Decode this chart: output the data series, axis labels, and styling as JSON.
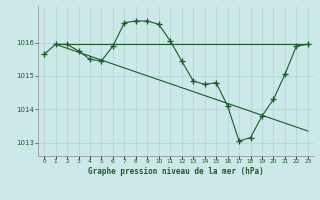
{
  "title": "Graphe pression niveau de la mer (hPa)",
  "bg_color": "#cce8e8",
  "line_color": "#1a5c2a",
  "xlim": [
    -0.5,
    23.5
  ],
  "ylim": [
    1012.6,
    1017.1
  ],
  "yticks": [
    1013,
    1014,
    1015,
    1016
  ],
  "xticks": [
    0,
    1,
    2,
    3,
    4,
    5,
    6,
    7,
    8,
    9,
    10,
    11,
    12,
    13,
    14,
    15,
    16,
    17,
    18,
    19,
    20,
    21,
    22,
    23
  ],
  "series1_x": [
    0,
    1,
    2,
    3,
    4,
    5,
    6,
    7,
    8,
    9,
    10,
    11,
    12,
    13,
    14,
    15,
    16,
    17,
    18,
    19,
    20,
    21,
    22,
    23
  ],
  "series1_y": [
    1015.65,
    1015.95,
    1015.95,
    1015.75,
    1015.5,
    1015.45,
    1015.9,
    1016.6,
    1016.65,
    1016.65,
    1016.55,
    1016.05,
    1015.45,
    1014.85,
    1014.75,
    1014.8,
    1014.1,
    1013.05,
    1013.15,
    1013.8,
    1014.3,
    1015.05,
    1015.9,
    1015.95
  ],
  "series2_x": [
    1,
    23
  ],
  "series2_y": [
    1015.95,
    1015.95
  ],
  "series3_x": [
    1,
    23
  ],
  "series3_y": [
    1015.95,
    1013.35
  ]
}
